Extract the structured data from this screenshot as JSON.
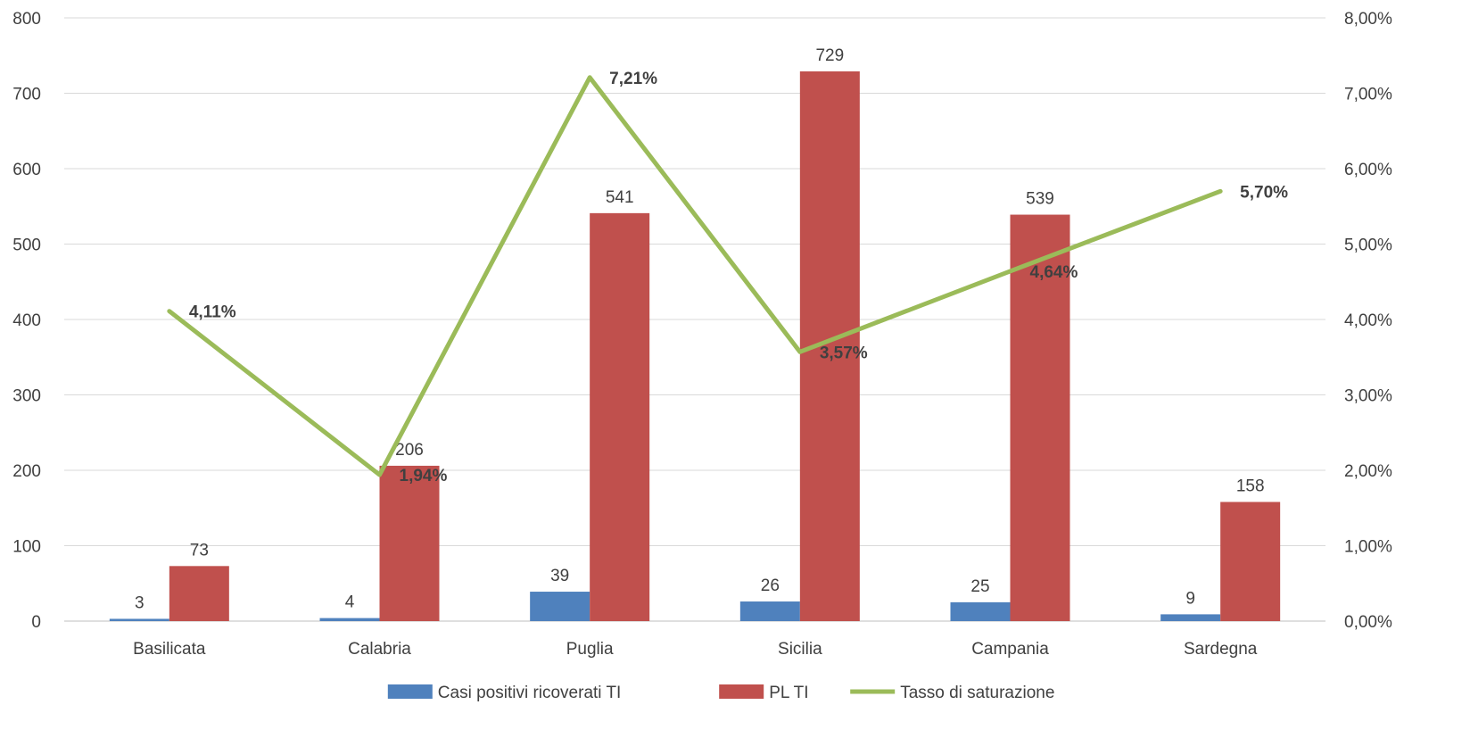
{
  "chart_data": {
    "type": "bar",
    "categories": [
      "Basilicata",
      "Calabria",
      "Puglia",
      "Sicilia",
      "Campania",
      "Sardegna"
    ],
    "series": [
      {
        "name": "Casi positivi ricoverati TI",
        "type": "bar",
        "axis": "left",
        "color": "#4F81BD",
        "values": [
          3,
          4,
          39,
          26,
          25,
          9
        ],
        "labels": [
          "3",
          "4",
          "39",
          "26",
          "25",
          "9"
        ]
      },
      {
        "name": "PL TI",
        "type": "bar",
        "axis": "left",
        "color": "#C0504D",
        "values": [
          73,
          206,
          541,
          729,
          539,
          158
        ],
        "labels": [
          "73",
          "206",
          "541",
          "729",
          "539",
          "158"
        ]
      },
      {
        "name": "Tasso di saturazione",
        "type": "line",
        "axis": "right",
        "color": "#9BBB59",
        "values": [
          4.11,
          1.94,
          7.21,
          3.57,
          4.64,
          5.7
        ],
        "labels": [
          "4,11%",
          "1,94%",
          "7,21%",
          "3,57%",
          "4,64%",
          "5,70%"
        ]
      }
    ],
    "left_axis": {
      "min": 0,
      "max": 800,
      "ticks": [
        "0",
        "100",
        "200",
        "300",
        "400",
        "500",
        "600",
        "700",
        "800"
      ]
    },
    "right_axis": {
      "min": 0,
      "max": 8,
      "ticks": [
        "0,00%",
        "1,00%",
        "2,00%",
        "3,00%",
        "4,00%",
        "5,00%",
        "6,00%",
        "7,00%",
        "8,00%"
      ]
    },
    "grid": true,
    "legend_position": "bottom"
  }
}
